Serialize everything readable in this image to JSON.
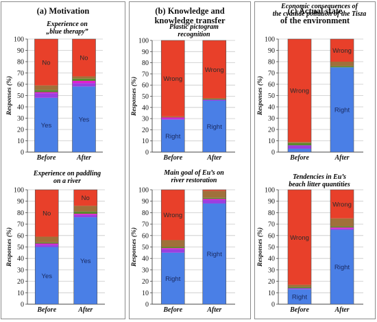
{
  "panels": [
    {
      "title_lines": [
        "(a) Motivation"
      ]
    },
    {
      "title_lines": [
        "(b) Knowledge and",
        "knowledge transfer"
      ]
    },
    {
      "title_lines": [
        "(c) Actual state",
        "of the environment"
      ]
    }
  ],
  "colors": {
    "yes_right": "#4a7fe6",
    "purple": "#9b3fe0",
    "magenta": "#e21ad0",
    "green": "#5a8a2e",
    "brown": "#a0703a",
    "no_wrong": "#e8402a"
  },
  "chart_data": [
    {
      "type": "bar",
      "stacked": true,
      "title_lines": [
        "Experience on",
        "„blue therapy”"
      ],
      "ylabel": "Responses (%)",
      "ylim": [
        0,
        100
      ],
      "yticks": [
        0,
        10,
        20,
        30,
        40,
        50,
        60,
        70,
        80,
        90,
        100
      ],
      "categories": [
        "Before",
        "After"
      ],
      "series": [
        {
          "name": "Yes",
          "color": "#4a7fe6",
          "values": [
            48,
            58
          ]
        },
        {
          "color": "#9b3fe0",
          "values": [
            4,
            3
          ]
        },
        {
          "color": "#e21ad0",
          "values": [
            1,
            2
          ]
        },
        {
          "color": "#5a8a2e",
          "values": [
            2,
            2
          ]
        },
        {
          "color": "#a0703a",
          "values": [
            4,
            2
          ]
        },
        {
          "name": "No",
          "color": "#e8402a",
          "values": [
            41,
            33
          ]
        }
      ]
    },
    {
      "type": "bar",
      "stacked": true,
      "title_lines": [
        "Plastic pictogram",
        "recognition"
      ],
      "ylabel": "Responses (%)",
      "ylim": [
        0,
        100
      ],
      "yticks": [
        0,
        10,
        20,
        30,
        40,
        50,
        60,
        70,
        80,
        90,
        100
      ],
      "categories": [
        "Before",
        "After"
      ],
      "series": [
        {
          "name": "Right",
          "color": "#4a7fe6",
          "values": [
            29,
            46
          ]
        },
        {
          "color": "#9b3fe0",
          "values": [
            1,
            1
          ]
        },
        {
          "color": "#e21ad0",
          "values": [
            1,
            0
          ]
        },
        {
          "color": "#5a8a2e",
          "values": [
            0,
            1
          ]
        },
        {
          "color": "#a0703a",
          "values": [
            1,
            0
          ]
        },
        {
          "name": "Wrong",
          "color": "#e8402a",
          "values": [
            68,
            52
          ]
        }
      ]
    },
    {
      "type": "bar",
      "stacked": true,
      "title_lines": [
        "Economic consequences of",
        "the cyanide pollution of the Tisza"
      ],
      "ylabel": "Responses (%)",
      "ylim": [
        0,
        100
      ],
      "yticks": [
        0,
        10,
        20,
        30,
        40,
        50,
        60,
        70,
        80,
        90,
        100
      ],
      "categories": [
        "Before",
        "After"
      ],
      "series": [
        {
          "name": "Right",
          "color": "#4a7fe6",
          "values": [
            3,
            75
          ]
        },
        {
          "color": "#9b3fe0",
          "values": [
            3,
            0
          ]
        },
        {
          "color": "#e21ad0",
          "values": [
            0,
            0
          ]
        },
        {
          "color": "#5a8a2e",
          "values": [
            2,
            1
          ]
        },
        {
          "color": "#a0703a",
          "values": [
            1,
            4
          ]
        },
        {
          "name": "Wrong",
          "color": "#e8402a",
          "values": [
            91,
            20
          ]
        }
      ]
    },
    {
      "type": "bar",
      "stacked": true,
      "title_lines": [
        "Experience on paddling",
        "on a river"
      ],
      "ylabel": "Responses (%)",
      "ylim": [
        0,
        100
      ],
      "yticks": [
        0,
        10,
        20,
        30,
        40,
        50,
        60,
        70,
        80,
        90,
        100
      ],
      "categories": [
        "Before",
        "After"
      ],
      "series": [
        {
          "name": "Yes",
          "color": "#4a7fe6",
          "values": [
            50,
            76
          ]
        },
        {
          "color": "#9b3fe0",
          "values": [
            2,
            2
          ]
        },
        {
          "color": "#e21ad0",
          "values": [
            1,
            1
          ]
        },
        {
          "color": "#5a8a2e",
          "values": [
            1,
            2
          ]
        },
        {
          "color": "#a0703a",
          "values": [
            5,
            5
          ]
        },
        {
          "name": "No",
          "color": "#e8402a",
          "values": [
            41,
            14
          ]
        }
      ]
    },
    {
      "type": "bar",
      "stacked": true,
      "title_lines": [
        "Main goal of Eu’s on",
        "river restoration"
      ],
      "ylabel": "Responses (%)",
      "ylim": [
        0,
        100
      ],
      "yticks": [
        0,
        10,
        20,
        30,
        40,
        50,
        60,
        70,
        80,
        90,
        100
      ],
      "categories": [
        "Before",
        "After"
      ],
      "series": [
        {
          "name": "Right",
          "color": "#4a7fe6",
          "values": [
            45,
            88
          ]
        },
        {
          "color": "#9b3fe0",
          "values": [
            3,
            3
          ]
        },
        {
          "color": "#e21ad0",
          "values": [
            1,
            1
          ]
        },
        {
          "color": "#5a8a2e",
          "values": [
            1,
            1
          ]
        },
        {
          "color": "#a0703a",
          "values": [
            6,
            6
          ]
        },
        {
          "name": "Wrong",
          "color": "#e8402a",
          "values": [
            44,
            1
          ]
        }
      ]
    },
    {
      "type": "bar",
      "stacked": true,
      "title_lines": [
        "Tendencies in Eu’s",
        "beach litter quantities"
      ],
      "ylabel": "Responses (%)",
      "ylim": [
        0,
        100
      ],
      "yticks": [
        0,
        10,
        20,
        30,
        40,
        50,
        60,
        70,
        80,
        90,
        100
      ],
      "categories": [
        "Before",
        "After"
      ],
      "series": [
        {
          "name": "Right",
          "color": "#4a7fe6",
          "values": [
            13,
            65
          ]
        },
        {
          "color": "#9b3fe0",
          "values": [
            1,
            1
          ]
        },
        {
          "color": "#e21ad0",
          "values": [
            0,
            1
          ]
        },
        {
          "color": "#5a8a2e",
          "values": [
            1,
            1
          ]
        },
        {
          "color": "#a0703a",
          "values": [
            2,
            7
          ]
        },
        {
          "name": "Wrong",
          "color": "#e8402a",
          "values": [
            83,
            25
          ]
        }
      ]
    }
  ]
}
